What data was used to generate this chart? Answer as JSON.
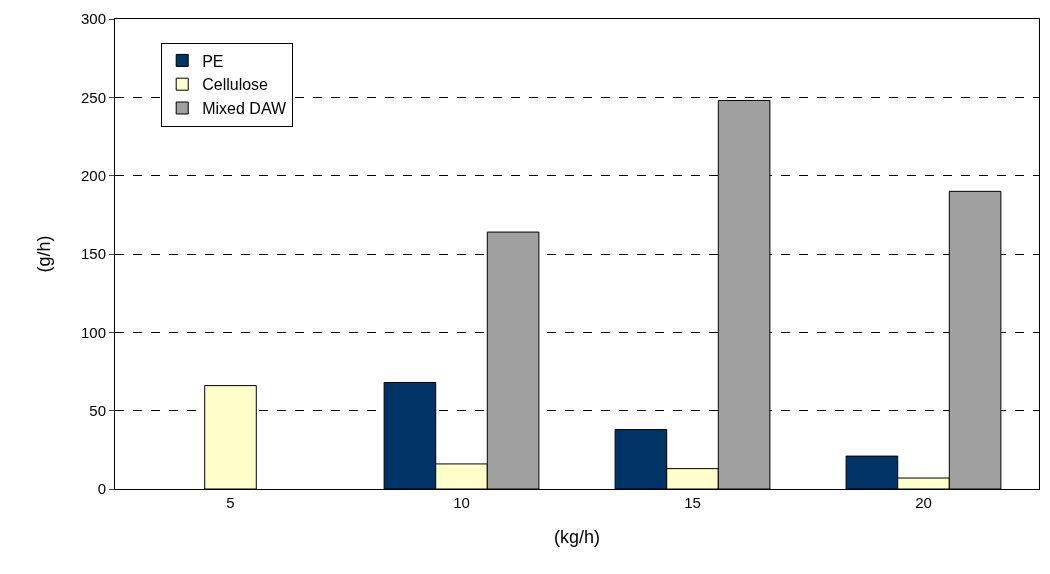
{
  "chart_data": {
    "type": "bar",
    "xlabel": "(kg/h)",
    "ylabel": "(g/h)",
    "categories": [
      "5",
      "10",
      "15",
      "20"
    ],
    "series": [
      {
        "name": "PE",
        "color": "#003366",
        "values": [
          null,
          68,
          38,
          21
        ]
      },
      {
        "name": "Cellulose",
        "color": "#ffffcc",
        "values": [
          66,
          16,
          13,
          7
        ]
      },
      {
        "name": "Mixed DAW",
        "color": "#a0a0a0",
        "values": [
          null,
          164,
          248,
          190
        ]
      }
    ],
    "ylim": [
      0,
      300
    ],
    "yticks": [
      0,
      50,
      100,
      150,
      200,
      250,
      300
    ],
    "grid": "y",
    "legend": "top left"
  }
}
